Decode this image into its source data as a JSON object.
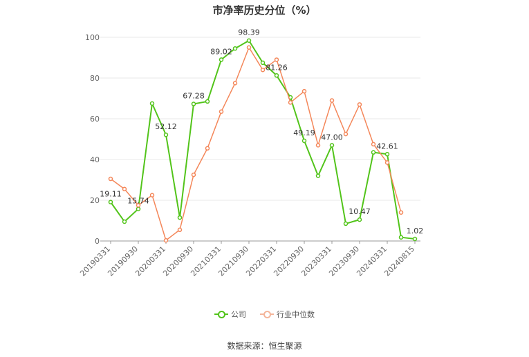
{
  "title": "市净率历史分位（%）",
  "source_text": "数据来源：恒生聚源",
  "colors": {
    "company": "#52c41a",
    "industry": "#f4875a",
    "grid": "#e8e8e8",
    "axis": "#999999",
    "text": "#666666"
  },
  "chart_data": {
    "type": "line",
    "title": "市净率历史分位（%）",
    "xlabel": "",
    "ylabel": "",
    "ylim": [
      0,
      100
    ],
    "yticks": [
      0,
      20,
      40,
      60,
      80,
      100
    ],
    "grid": true,
    "legend_position": "bottom",
    "x": [
      "20190331",
      "20190630",
      "20190930",
      "20191231",
      "20200331",
      "20200630",
      "20200930",
      "20201231",
      "20210331",
      "20210630",
      "20210930",
      "20211231",
      "20220331",
      "20220630",
      "20220930",
      "20221231",
      "20230331",
      "20230630",
      "20230930",
      "20231231",
      "20240331",
      "20240630",
      "20240815"
    ],
    "tick_labels": [
      "20190331",
      "20190930",
      "20200331",
      "20200930",
      "20210331",
      "20210930",
      "20220331",
      "20220930",
      "20230331",
      "20230930",
      "20240331",
      "20240815"
    ],
    "series": [
      {
        "name": "公司",
        "values": [
          19.11,
          9.5,
          15.74,
          67.5,
          52.12,
          11.5,
          67.28,
          68.5,
          89.02,
          94.5,
          98.39,
          87.5,
          81.26,
          70.5,
          49.19,
          32.0,
          47.0,
          8.5,
          10.47,
          43.5,
          42.61,
          1.8,
          1.02
        ],
        "labels": {
          "0": "19.11",
          "2": "15.74",
          "4": "52.12",
          "6": "67.28",
          "8": "89.02",
          "10": "98.39",
          "12": "81.26",
          "14": "49.19",
          "16": "47.00",
          "18": "10.47",
          "20": "42.61",
          "22": "1.02"
        }
      },
      {
        "name": "行业中位数",
        "values": [
          30.5,
          25.5,
          17.5,
          22.5,
          0.3,
          5.5,
          32.5,
          45.5,
          63.5,
          77.5,
          95.0,
          84.0,
          89.0,
          68.0,
          73.5,
          47.0,
          69.0,
          52.5,
          67.0,
          47.5,
          38.5,
          14.0,
          null
        ],
        "labels": {}
      }
    ]
  }
}
